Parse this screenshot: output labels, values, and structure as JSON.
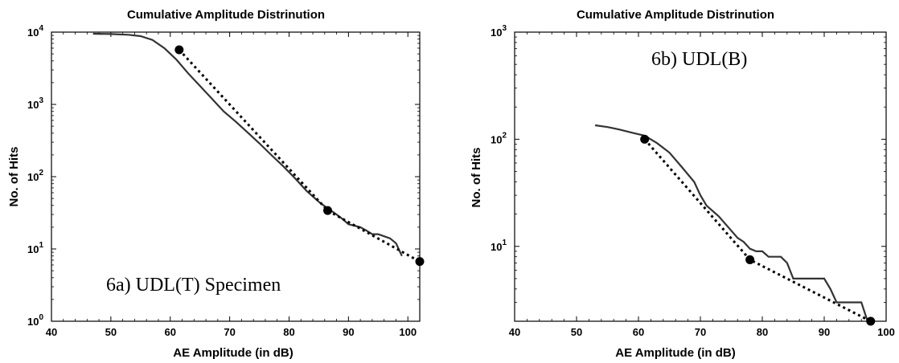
{
  "chart_data": [
    {
      "type": "line",
      "title": "Cumulative Amplitude Distrinution",
      "xlabel": "AE Amplitude (in dB)",
      "ylabel": "No. of Hits",
      "xlim": [
        40,
        102
      ],
      "ylim": [
        1,
        10000
      ],
      "yscale": "log",
      "xticks": [
        40,
        50,
        60,
        70,
        80,
        90,
        100
      ],
      "yticks": [
        {
          "base": "10",
          "exp": "0",
          "value": 1
        },
        {
          "base": "10",
          "exp": "1",
          "value": 10
        },
        {
          "base": "10",
          "exp": "2",
          "value": 100
        },
        {
          "base": "10",
          "exp": "3",
          "value": 1000
        },
        {
          "base": "10",
          "exp": "4",
          "value": 10000
        }
      ],
      "annotation": "6a) UDL(T) Specimen",
      "grid": false,
      "series": [
        {
          "x": [
            47,
            50,
            53,
            55,
            57,
            59,
            61,
            63,
            65,
            67,
            69,
            71,
            73,
            75,
            77,
            79,
            81,
            83,
            85,
            86,
            88,
            89,
            90,
            91,
            92,
            93,
            94,
            95,
            96,
            97,
            98,
            99
          ],
          "y": [
            9500,
            9400,
            9200,
            8800,
            7800,
            6000,
            4200,
            2700,
            1800,
            1200,
            800,
            580,
            410,
            290,
            200,
            140,
            95,
            63,
            45,
            39,
            30,
            26,
            22,
            21,
            20,
            18,
            16,
            16,
            15,
            14,
            12,
            8
          ]
        },
        {
          "style": "dotted-fit",
          "markers": true,
          "x": [
            61.5,
            86.5,
            102
          ],
          "y": [
            5700,
            34,
            6.7
          ]
        }
      ]
    },
    {
      "type": "line",
      "title": "Cumulative Amplitude Distrinution",
      "xlabel": "AE Amplitude (in dB)",
      "ylabel": "No. of Hits",
      "xlim": [
        40,
        100
      ],
      "ylim": [
        2,
        1000
      ],
      "yscale": "log",
      "xticks": [
        40,
        50,
        60,
        70,
        80,
        90,
        100
      ],
      "yticks": [
        {
          "base": "10",
          "exp": "1",
          "value": 10
        },
        {
          "base": "10",
          "exp": "2",
          "value": 100
        },
        {
          "base": "10",
          "exp": "3",
          "value": 1000
        }
      ],
      "annotation": "6b) UDL(B)",
      "grid": false,
      "series": [
        {
          "x": [
            53,
            55,
            57,
            59,
            61,
            63,
            65,
            67,
            69,
            70,
            71,
            73,
            75,
            76,
            77,
            78,
            79,
            80,
            81,
            82,
            83,
            84,
            85,
            86,
            87,
            88,
            89,
            90,
            91,
            92,
            93,
            94,
            95,
            96,
            97
          ],
          "y": [
            135,
            130,
            123,
            115,
            108,
            92,
            75,
            55,
            40,
            30,
            24,
            19,
            14,
            12,
            11,
            9.5,
            9,
            9,
            8,
            8,
            8,
            7,
            5,
            5,
            5,
            5,
            5,
            5,
            4,
            3,
            3,
            3,
            3,
            3,
            2
          ]
        },
        {
          "style": "dotted-fit",
          "markers": true,
          "x": [
            61,
            78,
            97.5
          ],
          "y": [
            100,
            7.5,
            2
          ]
        }
      ]
    }
  ]
}
